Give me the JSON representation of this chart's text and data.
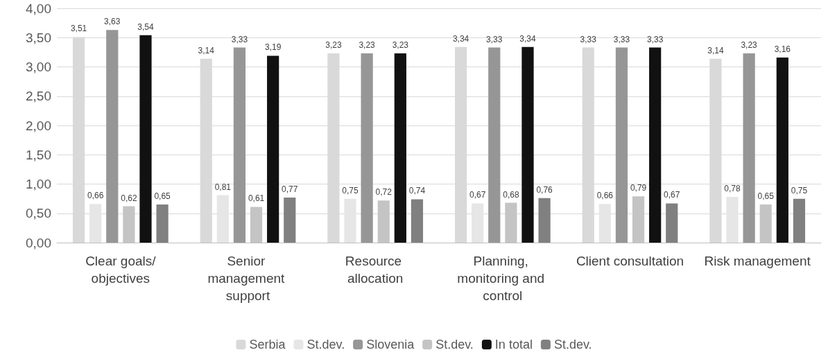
{
  "chart_data": {
    "type": "bar",
    "categories": [
      "Clear goals/objectives",
      "Senior management support",
      "Resource allocation",
      "Planning, monitoring and control",
      "Client consultation",
      "Risk management"
    ],
    "series": [
      {
        "name": "Serbia",
        "color": "#d9d9d9",
        "values": [
          3.51,
          3.14,
          3.23,
          3.34,
          3.33,
          3.14
        ],
        "value_labels": [
          "3,51",
          "3,14",
          "3,23",
          "3,34",
          "3,33",
          "3,14"
        ]
      },
      {
        "name": "St.dev.",
        "color": "#e6e6e6",
        "values": [
          0.66,
          0.81,
          0.75,
          0.67,
          0.66,
          0.78
        ],
        "value_labels": [
          "0,66",
          "0,81",
          "0,75",
          "0,67",
          "0,66",
          "0,78"
        ]
      },
      {
        "name": "Slovenia",
        "color": "#969696",
        "values": [
          3.63,
          3.33,
          3.23,
          3.33,
          3.33,
          3.23
        ],
        "value_labels": [
          "3,63",
          "3,33",
          "3,23",
          "3,33",
          "3,33",
          "3,23"
        ]
      },
      {
        "name": "St.dev.",
        "color": "#c4c4c4",
        "values": [
          0.62,
          0.61,
          0.72,
          0.68,
          0.79,
          0.65
        ],
        "value_labels": [
          "0,62",
          "0,61",
          "0,72",
          "0,68",
          "0,79",
          "0,65"
        ]
      },
      {
        "name": "In total",
        "color": "#111111",
        "values": [
          3.54,
          3.19,
          3.23,
          3.34,
          3.33,
          3.16
        ],
        "value_labels": [
          "3,54",
          "3,19",
          "3,23",
          "3,34",
          "3,33",
          "3,16"
        ]
      },
      {
        "name": "St.dev.",
        "color": "#808080",
        "values": [
          0.65,
          0.77,
          0.74,
          0.76,
          0.67,
          0.75
        ],
        "value_labels": [
          "0,65",
          "0,77",
          "0,74",
          "0,76",
          "0,67",
          "0,75"
        ]
      }
    ],
    "ylim": [
      0,
      4
    ],
    "yticks": [
      {
        "value": 0,
        "label": "0,00"
      },
      {
        "value": 0.5,
        "label": "0,50"
      },
      {
        "value": 1,
        "label": "1,00"
      },
      {
        "value": 1.5,
        "label": "1,50"
      },
      {
        "value": 2,
        "label": "2,00"
      },
      {
        "value": 2.5,
        "label": "2,50"
      },
      {
        "value": 3,
        "label": "3,00"
      },
      {
        "value": 3.5,
        "label": "3,50"
      },
      {
        "value": 4,
        "label": "4,00"
      }
    ],
    "grid": "y",
    "legend": "bottom"
  }
}
